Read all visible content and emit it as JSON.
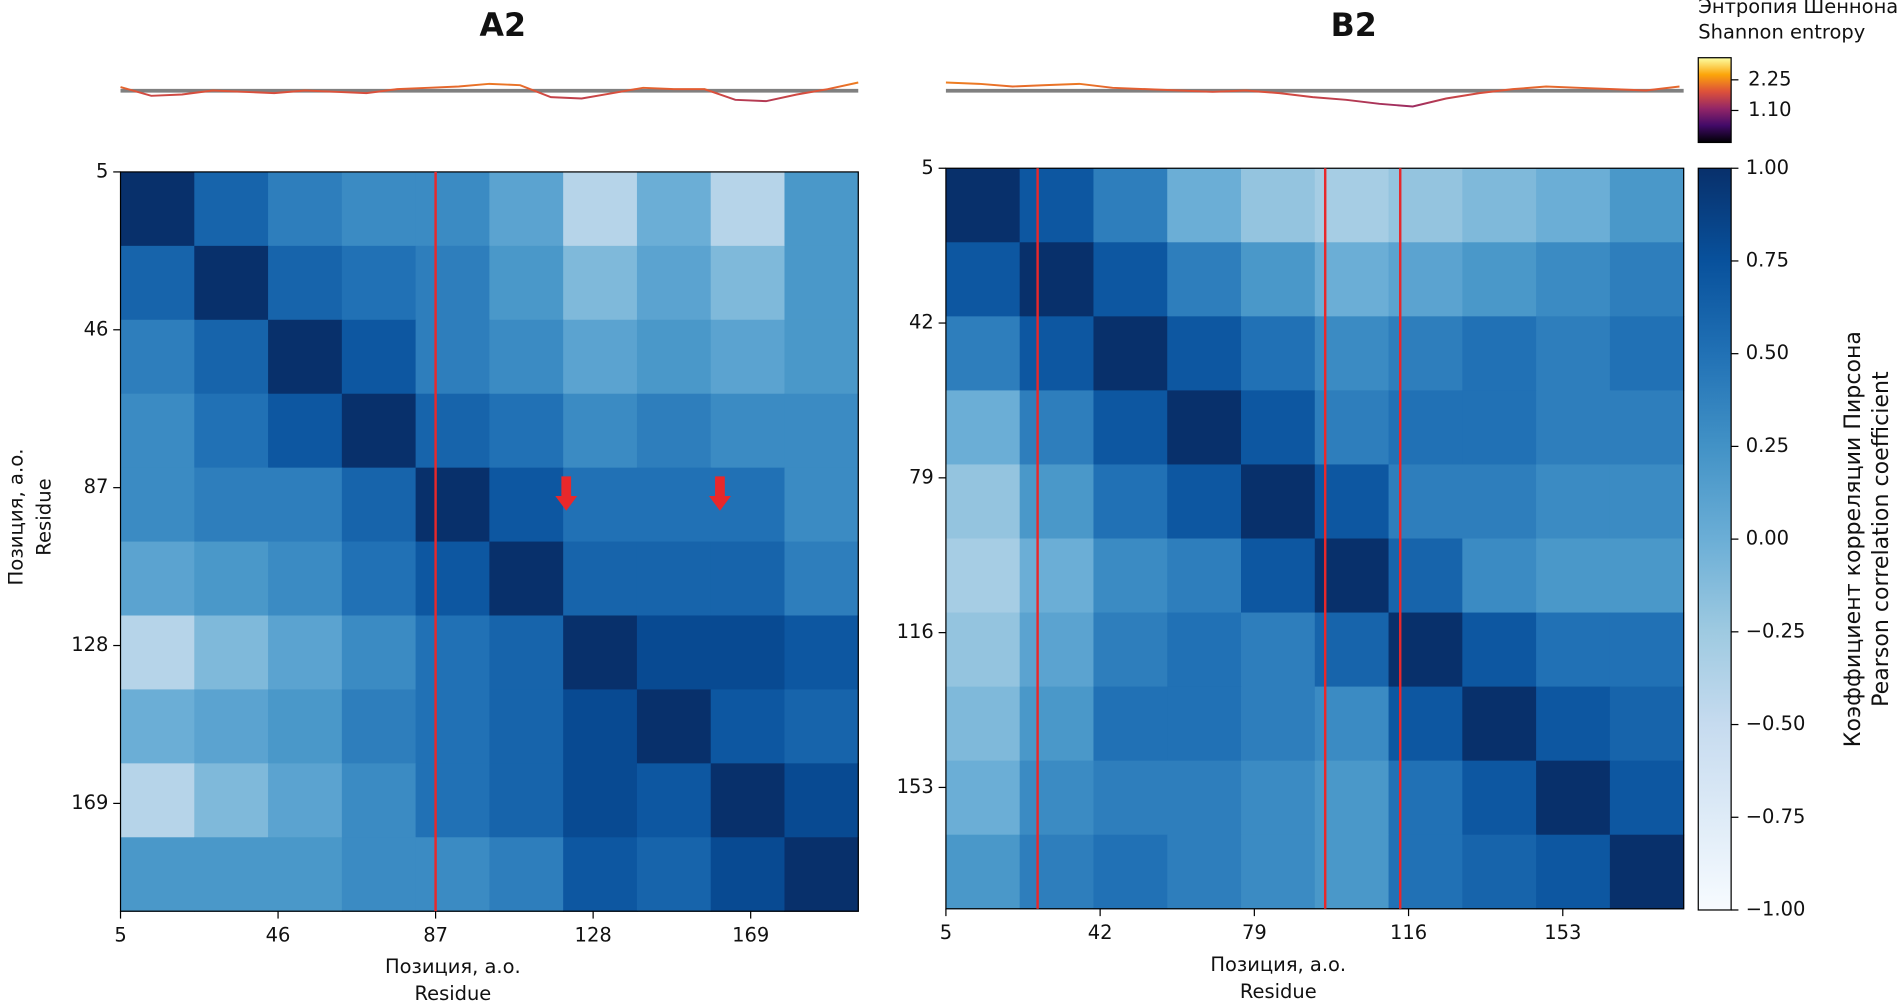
{
  "chart_data": [
    {
      "type": "heatmap",
      "title": "A2",
      "xlabel": [
        "Позиция, а.о.",
        "Residue"
      ],
      "ylabel": [
        "Позиция, а.о.",
        "Residue"
      ],
      "xlim": [
        5,
        197
      ],
      "ylim": [
        5,
        197
      ],
      "xticks": [
        5,
        46,
        87,
        128,
        169
      ],
      "yticks": [
        5,
        46,
        87,
        128,
        169
      ],
      "colormap": "Blues",
      "vlines": [
        87
      ],
      "vline_color": "#e8282b",
      "arrows": [
        {
          "x": 121,
          "y": 93
        },
        {
          "x": 161,
          "y": 93
        }
      ],
      "arrow_color": "#e8282b",
      "matrix": [
        [
          1.0,
          0.6,
          0.4,
          0.3,
          0.3,
          0.1,
          -0.4,
          0.0,
          -0.4,
          0.2
        ],
        [
          0.6,
          1.0,
          0.6,
          0.5,
          0.4,
          0.2,
          -0.1,
          0.1,
          -0.1,
          0.2
        ],
        [
          0.4,
          0.6,
          1.0,
          0.7,
          0.4,
          0.3,
          0.1,
          0.2,
          0.1,
          0.2
        ],
        [
          0.3,
          0.5,
          0.7,
          1.0,
          0.6,
          0.5,
          0.3,
          0.4,
          0.3,
          0.3
        ],
        [
          0.3,
          0.4,
          0.4,
          0.6,
          1.0,
          0.7,
          0.5,
          0.5,
          0.5,
          0.3
        ],
        [
          0.1,
          0.2,
          0.3,
          0.5,
          0.7,
          1.0,
          0.6,
          0.6,
          0.6,
          0.4
        ],
        [
          -0.4,
          -0.1,
          0.1,
          0.3,
          0.5,
          0.6,
          1.0,
          0.8,
          0.8,
          0.7
        ],
        [
          0.0,
          0.1,
          0.2,
          0.4,
          0.5,
          0.6,
          0.8,
          1.0,
          0.7,
          0.6
        ],
        [
          -0.4,
          -0.1,
          0.1,
          0.3,
          0.5,
          0.6,
          0.8,
          0.7,
          1.0,
          0.8
        ],
        [
          0.2,
          0.2,
          0.2,
          0.3,
          0.3,
          0.4,
          0.7,
          0.6,
          0.8,
          1.0
        ]
      ],
      "entropy": {
        "x": [
          5,
          13,
          21,
          29,
          37,
          45,
          53,
          61,
          69,
          77,
          85,
          93,
          101,
          109,
          117,
          125,
          133,
          141,
          149,
          157,
          165,
          173,
          181,
          189,
          197
        ],
        "values": [
          1.98,
          1.65,
          1.7,
          1.85,
          1.8,
          1.75,
          1.85,
          1.8,
          1.75,
          1.9,
          1.95,
          2.0,
          2.1,
          2.05,
          1.6,
          1.55,
          1.75,
          1.95,
          1.9,
          1.9,
          1.5,
          1.45,
          1.7,
          1.9,
          2.15
        ],
        "reference": 1.84,
        "reference_color": "#808080"
      }
    },
    {
      "type": "heatmap",
      "title": "B2",
      "xlabel": [
        "Позиция, а.о.",
        "Residue"
      ],
      "xlim": [
        5,
        182
      ],
      "ylim": [
        5,
        182
      ],
      "xticks": [
        5,
        42,
        79,
        116,
        153
      ],
      "yticks": [
        5,
        42,
        79,
        116,
        153
      ],
      "colormap": "Blues",
      "vlines": [
        27,
        96,
        114
      ],
      "vline_color": "#e8282b",
      "matrix": [
        [
          1.0,
          0.7,
          0.4,
          0.0,
          -0.2,
          -0.3,
          -0.2,
          -0.1,
          0.0,
          0.2
        ],
        [
          0.7,
          1.0,
          0.7,
          0.4,
          0.2,
          0.0,
          0.1,
          0.2,
          0.3,
          0.4
        ],
        [
          0.4,
          0.7,
          1.0,
          0.7,
          0.5,
          0.3,
          0.4,
          0.5,
          0.4,
          0.5
        ],
        [
          0.0,
          0.4,
          0.7,
          1.0,
          0.7,
          0.4,
          0.5,
          0.5,
          0.4,
          0.4
        ],
        [
          -0.2,
          0.2,
          0.5,
          0.7,
          1.0,
          0.7,
          0.4,
          0.4,
          0.3,
          0.3
        ],
        [
          -0.3,
          0.0,
          0.3,
          0.4,
          0.7,
          1.0,
          0.6,
          0.3,
          0.2,
          0.2
        ],
        [
          -0.2,
          0.1,
          0.4,
          0.5,
          0.4,
          0.6,
          1.0,
          0.7,
          0.5,
          0.5
        ],
        [
          -0.1,
          0.2,
          0.5,
          0.5,
          0.4,
          0.3,
          0.7,
          1.0,
          0.7,
          0.6
        ],
        [
          0.0,
          0.3,
          0.4,
          0.4,
          0.3,
          0.2,
          0.5,
          0.7,
          1.0,
          0.7
        ],
        [
          0.2,
          0.4,
          0.5,
          0.4,
          0.3,
          0.2,
          0.5,
          0.6,
          0.7,
          1.0
        ]
      ],
      "entropy": {
        "x": [
          5,
          13,
          21,
          29,
          37,
          45,
          53,
          61,
          69,
          77,
          85,
          93,
          101,
          109,
          117,
          125,
          133,
          141,
          149,
          157,
          165,
          173,
          181
        ],
        "values": [
          2.15,
          2.1,
          2.0,
          2.05,
          2.1,
          1.95,
          1.9,
          1.85,
          1.8,
          1.85,
          1.75,
          1.6,
          1.5,
          1.35,
          1.25,
          1.55,
          1.75,
          1.9,
          2.0,
          1.95,
          1.9,
          1.85,
          2.0
        ],
        "reference": 1.84,
        "reference_color": "#808080"
      }
    }
  ],
  "colorbar": {
    "label": [
      "Коэффициент корреляции Пирсона",
      "Pearson correlation coefficient"
    ],
    "colormap": "Blues",
    "vlim": [
      -1,
      1
    ],
    "ticks": [
      {
        "value": 1,
        "label": "1.00"
      },
      {
        "value": 0.75,
        "label": "0.75"
      },
      {
        "value": 0.5,
        "label": "0.50"
      },
      {
        "value": 0.25,
        "label": "0.25"
      },
      {
        "value": 0,
        "label": "0.00"
      },
      {
        "value": -0.25,
        "label": "−0.25"
      },
      {
        "value": -0.5,
        "label": "−0.50"
      },
      {
        "value": -0.75,
        "label": "−0.75"
      },
      {
        "value": -1,
        "label": "−1.00"
      }
    ]
  },
  "entropy_colorbar": {
    "label": [
      "Энтропия Шеннона",
      "Shannon entropy"
    ],
    "colormap": "inferno",
    "vlim": [
      -0.1,
      3.08
    ],
    "ticks": [
      2.25,
      {
        "value": 1.1,
        "label": "1.10"
      }
    ]
  }
}
